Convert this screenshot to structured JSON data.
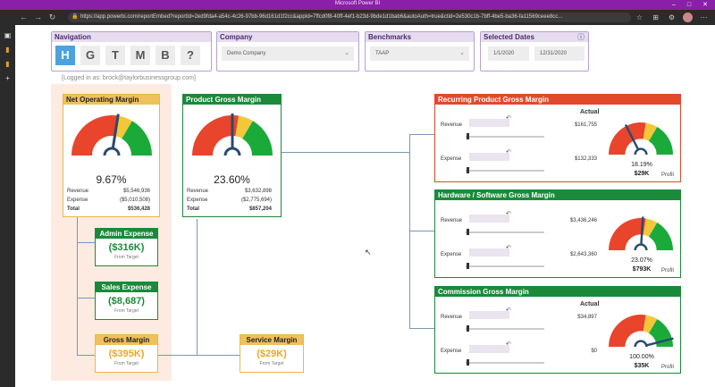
{
  "browser": {
    "title": "Microsoft Power BI",
    "url": "https://app.powerbi.com/reportEmbed?reportId=2ed9fda4-a54c-4c26-97bb-96d161d1f2cc&appId=7ffcd0f8-40ff-4ef1-b23d-9bde1d1bab6&autoAuth=true&ctid=2e530c1b-7bff-4be5-ba36-fa11569ceee8cc..."
  },
  "navigation": {
    "label": "Navigation",
    "buttons": [
      "H",
      "G",
      "T",
      "M",
      "B",
      "?"
    ]
  },
  "company": {
    "label": "Company",
    "value": "Demo Company"
  },
  "benchmarks": {
    "label": "Benchmarks",
    "value": "TAAP"
  },
  "dates": {
    "label": "Selected Dates",
    "start": "1/1/2020",
    "end": "12/31/2020",
    "info_icon": "info-icon"
  },
  "logged_in": "[Logged in as: brock@taylorbusinessgroup.com]",
  "net_operating": {
    "title": "Net Operating Margin",
    "pct": "9.67%",
    "gauge_level": 0.55,
    "revenue_label": "Revenue",
    "revenue": "$5,546,936",
    "expense_label": "Expense",
    "expense": "($5,010,508)",
    "total_label": "Total",
    "total": "$536,428",
    "color": "#f0c05a"
  },
  "product_gross": {
    "title": "Product Gross Margin",
    "pct": "23.60%",
    "gauge_level": 0.5,
    "revenue_label": "Revenue",
    "revenue": "$3,632,898",
    "expense_label": "Expense",
    "expense": "($2,775,694)",
    "total_label": "Total",
    "total": "$857,204",
    "color": "#1a8a3a"
  },
  "admin_expense": {
    "title": "Admin Expense",
    "value": "($316K)",
    "sub": "From Target"
  },
  "sales_expense": {
    "title": "Sales Expense",
    "value": "($8,687)",
    "sub": "From Target"
  },
  "gross_margin": {
    "title": "Gross Margin",
    "value": "($395K)",
    "sub": "From Target"
  },
  "service_margin": {
    "title": "Service Margin",
    "value": "($29K)",
    "sub": "From Target"
  },
  "recurring": {
    "title": "Recurring Product Gross Margin",
    "actual_label": "Actual",
    "revenue_label": "Revenue",
    "revenue": "$161,755",
    "expense_label": "Expense",
    "expense": "$132,333",
    "pct": "18.19%",
    "value": "$29K",
    "profit_label": "Profit",
    "gauge_level": 0.35,
    "color": "#e04a2a"
  },
  "hardware": {
    "title": "Hardware / Software Gross Margin",
    "actual_label": "",
    "revenue_label": "Revenue",
    "revenue": "$3,436,246",
    "expense_label": "Expense",
    "expense": "$2,643,360",
    "pct": "23.07%",
    "value": "$793K",
    "profit_label": "Profit",
    "gauge_level": 0.52,
    "color": "#1a8a3a"
  },
  "commission": {
    "title": "Commission Gross Margin",
    "actual_label": "Actual",
    "revenue_label": "Revenue",
    "revenue": "$34,897",
    "expense_label": "Expense",
    "expense": "$0",
    "pct": "100.00%",
    "value": "$35K",
    "profit_label": "Profit",
    "gauge_level": 0.92,
    "color": "#1a8a3a"
  }
}
